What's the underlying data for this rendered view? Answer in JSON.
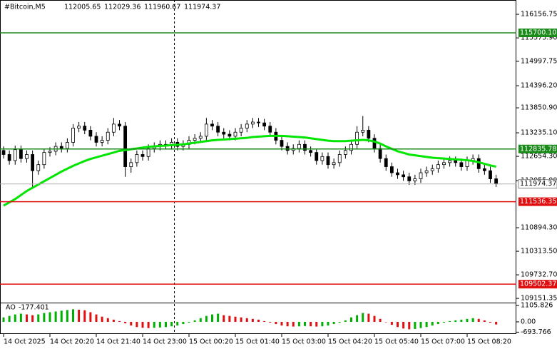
{
  "header": {
    "symbol": "#Bitcoin,M5",
    "ohlc": [
      112005.65,
      112029.36,
      111960.67,
      111974.37
    ]
  },
  "chart_data": [
    {
      "type": "candlestick",
      "open": [
        112800,
        112700,
        112550,
        112820,
        112600,
        112700,
        112300,
        112450,
        112750,
        112780,
        112900,
        112850,
        113000,
        113350,
        113400,
        113300,
        113150,
        113000,
        113050,
        113250,
        113450,
        113400,
        112400,
        112500,
        112700,
        112650,
        112850,
        112900,
        112950,
        112920,
        113000,
        112900,
        112950,
        113050,
        113100,
        113150,
        113450,
        113400,
        113250,
        113200,
        113150,
        113250,
        113350,
        113450,
        113500,
        113480,
        113400,
        113250,
        113050,
        112900,
        112800,
        112850,
        112950,
        112800,
        112750,
        112550,
        112650,
        112450,
        112500,
        112700,
        112800,
        112950,
        113250,
        113300,
        113100,
        112850,
        112600,
        112400,
        112250,
        112200,
        112150,
        112050,
        112100,
        112250,
        112300,
        112350,
        112450,
        112500,
        112550,
        112500,
        112400,
        112550,
        112600,
        112350,
        112300,
        112100
      ],
      "high": [
        112900,
        112800,
        112920,
        112920,
        112800,
        112800,
        112550,
        112850,
        112880,
        113000,
        113000,
        113100,
        113450,
        113500,
        113500,
        113400,
        113250,
        113150,
        113350,
        113600,
        113550,
        113500,
        112600,
        112800,
        112800,
        112950,
        113000,
        113050,
        113050,
        113100,
        113100,
        113050,
        113150,
        113200,
        113250,
        113600,
        113550,
        113500,
        113350,
        113300,
        113350,
        113450,
        113550,
        113600,
        113600,
        113580,
        113500,
        113350,
        113150,
        113000,
        112950,
        113050,
        113050,
        112900,
        112850,
        112750,
        112750,
        112600,
        112800,
        112900,
        113050,
        113400,
        113650,
        113400,
        113200,
        112950,
        112700,
        112500,
        112350,
        112300,
        112250,
        112200,
        112350,
        112400,
        112450,
        112550,
        112600,
        112650,
        112650,
        112600,
        112650,
        112700,
        112700,
        112450,
        112400,
        112200
      ],
      "low": [
        112600,
        112450,
        112450,
        112500,
        112500,
        111850,
        112200,
        112350,
        112650,
        112680,
        112750,
        112750,
        112900,
        113250,
        113200,
        113050,
        112900,
        112900,
        112950,
        113150,
        113300,
        112150,
        112250,
        112400,
        112550,
        112550,
        112750,
        112800,
        112820,
        112820,
        112800,
        112800,
        112850,
        112950,
        113000,
        113050,
        113300,
        113150,
        113100,
        113050,
        113050,
        113150,
        113250,
        113350,
        113380,
        113300,
        113150,
        112950,
        112800,
        112700,
        112700,
        112750,
        112700,
        112650,
        112450,
        112450,
        112350,
        112350,
        112400,
        112600,
        112700,
        112850,
        113150,
        113000,
        112750,
        112500,
        112300,
        112150,
        112100,
        112050,
        111950,
        111950,
        112000,
        112150,
        112200,
        112250,
        112350,
        112400,
        112400,
        112300,
        112300,
        112450,
        112250,
        112200,
        112000,
        111900
      ],
      "close": [
        112700,
        112550,
        112820,
        112600,
        112700,
        112300,
        112450,
        112750,
        112780,
        112900,
        112850,
        113000,
        113350,
        113400,
        113300,
        113150,
        113000,
        113050,
        113250,
        113450,
        113400,
        112400,
        112500,
        112700,
        112650,
        112850,
        112900,
        112950,
        112920,
        113000,
        112900,
        112950,
        113050,
        113100,
        113150,
        113450,
        113400,
        113250,
        113200,
        113150,
        113250,
        113350,
        113450,
        113500,
        113480,
        113400,
        113250,
        113050,
        112900,
        112800,
        112850,
        112950,
        112800,
        112750,
        112550,
        112650,
        112450,
        112500,
        112700,
        112800,
        112950,
        113250,
        113300,
        113100,
        112850,
        112600,
        112400,
        112250,
        112200,
        112150,
        112050,
        112100,
        112250,
        112300,
        112350,
        112450,
        112500,
        112550,
        112500,
        112400,
        112550,
        112600,
        112350,
        112300,
        112100,
        111974.37
      ],
      "ma": {
        "color": "#00e600",
        "values": [
          111440,
          111520,
          111600,
          111700,
          111800,
          111880,
          111960,
          112040,
          112120,
          112200,
          112280,
          112350,
          112420,
          112480,
          112540,
          112590,
          112630,
          112670,
          112710,
          112750,
          112790,
          112810,
          112830,
          112850,
          112870,
          112890,
          112900,
          112910,
          112920,
          112930,
          112940,
          112950,
          112970,
          112990,
          113010,
          113030,
          113050,
          113060,
          113070,
          113080,
          113090,
          113100,
          113110,
          113130,
          113140,
          113150,
          113160,
          113160,
          113160,
          113150,
          113140,
          113130,
          113120,
          113100,
          113080,
          113060,
          113040,
          113030,
          113030,
          113030,
          113040,
          113050,
          113060,
          113050,
          113020,
          112970,
          112900,
          112840,
          112780,
          112740,
          112700,
          112680,
          112660,
          112640,
          112620,
          112610,
          112600,
          112590,
          112580,
          112570,
          112560,
          112540,
          112510,
          112470,
          112430,
          112400
        ]
      },
      "ylim": [
        109030,
        116510
      ],
      "yticks": [
        {
          "value": 116156.75,
          "label": "116156.75"
        },
        {
          "value": 115575.9,
          "label": "115575.90"
        },
        {
          "value": 114997.75,
          "label": "114997.75"
        },
        {
          "value": 114396.2,
          "label": "114396.20"
        },
        {
          "value": 113850.9,
          "label": "113850.90"
        },
        {
          "value": 113235.1,
          "label": "113235.10"
        },
        {
          "value": 112654.3,
          "label": "112654.30"
        },
        {
          "value": 112055,
          "label": "112055.00"
        },
        {
          "value": 110894.3,
          "label": "110894.30"
        },
        {
          "value": 110313.5,
          "label": "110313.50"
        },
        {
          "value": 109732.7,
          "label": "109732.70"
        },
        {
          "value": 109151.35,
          "label": "109151.35"
        }
      ],
      "levels": [
        {
          "value": 115700.1,
          "label": "115700.10",
          "color": "#1a8a1a"
        },
        {
          "value": 112835.78,
          "label": "112835.78",
          "color": "#1a8a1a"
        },
        {
          "value": 111536.35,
          "label": "111536.35",
          "color": "#e01010"
        },
        {
          "value": 109502.37,
          "label": "109502.37",
          "color": "#e01010"
        }
      ]
    },
    {
      "type": "bar",
      "name": "AO",
      "up_color": "#00b000",
      "down_color": "#e01010",
      "categories": [
        "14 Oct 2025",
        null,
        null,
        null,
        null,
        null,
        null,
        null,
        "14 Oct 20:20",
        null,
        null,
        null,
        null,
        null,
        null,
        null,
        "14 Oct 21:40",
        null,
        null,
        null,
        null,
        null,
        null,
        null,
        "14 Oct 23:00",
        null,
        null,
        null,
        null,
        null,
        null,
        null,
        "15 Oct 00:20",
        null,
        null,
        null,
        null,
        null,
        null,
        null,
        "15 Oct 01:40",
        null,
        null,
        null,
        null,
        null,
        null,
        null,
        "15 Oct 03:00",
        null,
        null,
        null,
        null,
        null,
        null,
        null,
        "15 Oct 04:20",
        null,
        null,
        null,
        null,
        null,
        null,
        null,
        "15 Oct 05:40",
        null,
        null,
        null,
        null,
        null,
        null,
        null,
        "15 Oct 07:00",
        null,
        null,
        null,
        null,
        null,
        null,
        null,
        "15 Oct 08:20",
        null,
        null,
        null,
        null,
        null
      ],
      "values": [
        300,
        400,
        500,
        550,
        500,
        450,
        500,
        600,
        650,
        700,
        750,
        800,
        850,
        820,
        780,
        650,
        500,
        350,
        250,
        150,
        50,
        -100,
        -250,
        -350,
        -400,
        -420,
        -400,
        -380,
        -350,
        -300,
        -250,
        -150,
        -50,
        100,
        250,
        400,
        500,
        550,
        450,
        400,
        350,
        300,
        250,
        200,
        150,
        50,
        -50,
        -150,
        -250,
        -300,
        -320,
        -300,
        -280,
        -300,
        -320,
        -300,
        -250,
        -150,
        -50,
        100,
        300,
        450,
        600,
        550,
        400,
        200,
        0,
        -200,
        -350,
        -450,
        -500,
        -480,
        -420,
        -350,
        -250,
        -150,
        -50,
        50,
        100,
        150,
        200,
        250,
        200,
        100,
        -50,
        -177.401
      ],
      "ylim": [
        -820,
        1250
      ],
      "yticks": [
        1105.826,
        {
          "value": 0,
          "label": "0.00"
        },
        -693.766
      ]
    }
  ]
}
